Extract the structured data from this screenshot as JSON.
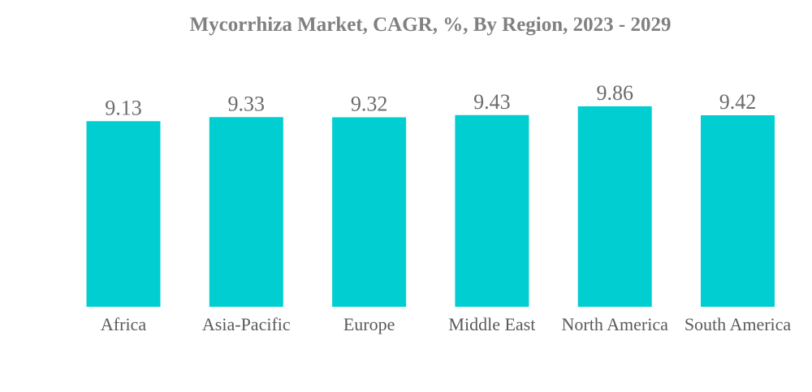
{
  "chart_data": {
    "type": "bar",
    "title": "Mycorrhiza Market, CAGR, %, By Region, 2023 - 2029",
    "categories": [
      "Africa",
      "Asia-Pacific",
      "Europe",
      "Middle East",
      "North America",
      "South America"
    ],
    "values": [
      9.13,
      9.33,
      9.32,
      9.43,
      9.86,
      9.42
    ],
    "xlabel": "",
    "ylabel": "",
    "ylim": [
      0,
      9.86
    ],
    "grid": false,
    "legend": "none",
    "bar_color": "#00CED1"
  }
}
